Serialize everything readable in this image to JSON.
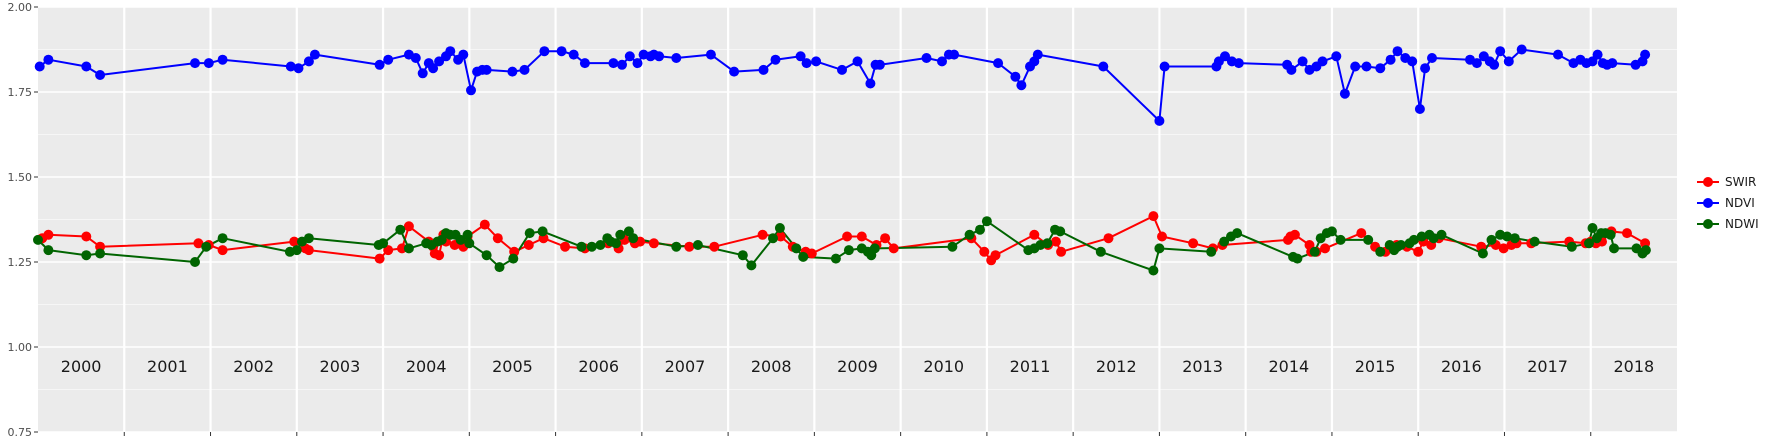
{
  "chart_data": {
    "type": "line",
    "x_kind": "decimal-year",
    "xlim": [
      2000,
      2019
    ],
    "ylim": [
      0.75,
      2.0
    ],
    "yticks": [
      0.75,
      1.0,
      1.25,
      1.5,
      1.75,
      2.0
    ],
    "ytick_labels": [
      "0.75",
      "1.00",
      "1.25",
      "1.50",
      "1.75",
      "2.00"
    ],
    "years": [
      "2000",
      "2001",
      "2002",
      "2003",
      "2004",
      "2005",
      "2006",
      "2007",
      "2008",
      "2009",
      "2010",
      "2011",
      "2012",
      "2013",
      "2014",
      "2015",
      "2016",
      "2017",
      "2018"
    ],
    "grid": true,
    "legend_position": "right",
    "colors": {
      "panel": "#ebebeb",
      "grid": "#ffffff"
    },
    "series": [
      {
        "name": "SWIR",
        "color": "#ff0000",
        "x": [
          2000.05,
          2000.12,
          2000.56,
          2000.72,
          2001.86,
          2001.98,
          2002.14,
          2002.97,
          2003.1,
          2003.14,
          2003.96,
          2004.06,
          2004.22,
          2004.3,
          2004.53,
          2004.58,
          2004.6,
          2004.65,
          2004.7,
          2004.73,
          2004.83,
          2004.88,
          2004.93,
          2004.98,
          2005.18,
          2005.33,
          2005.52,
          2005.69,
          2005.86,
          2006.11,
          2006.34,
          2006.61,
          2006.73,
          2006.8,
          2006.92,
          2006.98,
          2007.14,
          2007.55,
          2007.84,
          2008.4,
          2008.61,
          2008.75,
          2008.9,
          2008.97,
          2009.38,
          2009.55,
          2009.72,
          2009.82,
          2009.92,
          2010.82,
          2010.97,
          2011.05,
          2011.1,
          2011.55,
          2011.71,
          2011.8,
          2011.86,
          2012.41,
          2012.93,
          2013.03,
          2013.39,
          2013.62,
          2013.73,
          2014.49,
          2014.52,
          2014.57,
          2014.74,
          2014.76,
          2014.82,
          2014.92,
          2015.34,
          2015.5,
          2015.62,
          2015.75,
          2015.87,
          2016.0,
          2016.06,
          2016.15,
          2016.24,
          2016.73,
          2016.9,
          2016.99,
          2017.08,
          2017.14,
          2017.31,
          2017.75,
          2017.94,
          2018.0,
          2018.06,
          2018.13,
          2018.24,
          2018.42,
          2018.63
        ],
        "values": [
          1.32,
          1.33,
          1.325,
          1.295,
          1.305,
          1.3,
          1.285,
          1.31,
          1.29,
          1.285,
          1.26,
          1.285,
          1.29,
          1.355,
          1.31,
          1.295,
          1.275,
          1.27,
          1.33,
          1.31,
          1.3,
          1.305,
          1.295,
          1.325,
          1.36,
          1.32,
          1.28,
          1.3,
          1.32,
          1.295,
          1.29,
          1.305,
          1.29,
          1.315,
          1.305,
          1.31,
          1.305,
          1.295,
          1.295,
          1.33,
          1.325,
          1.295,
          1.28,
          1.275,
          1.325,
          1.325,
          1.3,
          1.32,
          1.29,
          1.32,
          1.28,
          1.255,
          1.27,
          1.33,
          1.3,
          1.31,
          1.28,
          1.32,
          1.385,
          1.325,
          1.305,
          1.29,
          1.3,
          1.315,
          1.325,
          1.33,
          1.3,
          1.28,
          1.28,
          1.29,
          1.335,
          1.295,
          1.28,
          1.3,
          1.295,
          1.28,
          1.31,
          1.3,
          1.32,
          1.295,
          1.3,
          1.29,
          1.3,
          1.305,
          1.305,
          1.31,
          1.305,
          1.31,
          1.305,
          1.31,
          1.34,
          1.335,
          1.305
        ]
      },
      {
        "name": "NDVI",
        "color": "#0000ff",
        "x": [
          2000.02,
          2000.12,
          2000.56,
          2000.72,
          2001.82,
          2001.98,
          2002.14,
          2002.93,
          2003.02,
          2003.14,
          2003.21,
          2003.96,
          2004.06,
          2004.3,
          2004.38,
          2004.46,
          2004.53,
          2004.58,
          2004.65,
          2004.73,
          2004.78,
          2004.87,
          2004.93,
          2005.02,
          2005.09,
          2005.15,
          2005.2,
          2005.5,
          2005.64,
          2005.87,
          2006.07,
          2006.21,
          2006.34,
          2006.67,
          2006.77,
          2006.86,
          2006.95,
          2007.02,
          2007.1,
          2007.14,
          2007.2,
          2007.4,
          2007.8,
          2008.07,
          2008.41,
          2008.55,
          2008.84,
          2008.91,
          2009.02,
          2009.32,
          2009.5,
          2009.65,
          2009.71,
          2009.76,
          2010.3,
          2010.48,
          2010.56,
          2010.62,
          2011.13,
          2011.33,
          2011.4,
          2011.5,
          2011.55,
          2011.59,
          2012.35,
          2013.0,
          2013.06,
          2013.66,
          2013.69,
          2013.76,
          2013.84,
          2013.92,
          2014.48,
          2014.53,
          2014.66,
          2014.74,
          2014.82,
          2014.89,
          2015.05,
          2015.15,
          2015.27,
          2015.4,
          2015.56,
          2015.68,
          2015.76,
          2015.85,
          2015.93,
          2016.02,
          2016.08,
          2016.16,
          2016.6,
          2016.68,
          2016.76,
          2016.83,
          2016.88,
          2016.95,
          2017.05,
          2017.2,
          2017.62,
          2017.8,
          2017.88,
          2017.95,
          2018.02,
          2018.08,
          2018.14,
          2018.19,
          2018.25,
          2018.52,
          2018.6,
          2018.63
        ],
        "values": [
          1.825,
          1.845,
          1.825,
          1.8,
          1.835,
          1.835,
          1.845,
          1.825,
          1.82,
          1.84,
          1.86,
          1.83,
          1.845,
          1.86,
          1.85,
          1.805,
          1.835,
          1.82,
          1.84,
          1.855,
          1.87,
          1.845,
          1.86,
          1.755,
          1.81,
          1.815,
          1.815,
          1.81,
          1.815,
          1.87,
          1.87,
          1.86,
          1.835,
          1.835,
          1.83,
          1.855,
          1.835,
          1.86,
          1.855,
          1.86,
          1.855,
          1.85,
          1.86,
          1.81,
          1.815,
          1.845,
          1.855,
          1.835,
          1.84,
          1.815,
          1.84,
          1.775,
          1.83,
          1.83,
          1.85,
          1.84,
          1.86,
          1.86,
          1.835,
          1.795,
          1.77,
          1.825,
          1.84,
          1.86,
          1.825,
          1.665,
          1.825,
          1.825,
          1.84,
          1.855,
          1.84,
          1.835,
          1.83,
          1.815,
          1.84,
          1.815,
          1.825,
          1.84,
          1.855,
          1.745,
          1.825,
          1.825,
          1.82,
          1.845,
          1.87,
          1.85,
          1.84,
          1.7,
          1.82,
          1.85,
          1.845,
          1.835,
          1.855,
          1.84,
          1.83,
          1.87,
          1.84,
          1.875,
          1.86,
          1.835,
          1.845,
          1.835,
          1.84,
          1.86,
          1.835,
          1.83,
          1.835,
          1.83,
          1.84,
          1.86
        ],
        "note": ""
      },
      {
        "name": "NDWI",
        "color": "#006400",
        "x": [
          2000.0,
          2000.12,
          2000.56,
          2000.72,
          2001.82,
          2001.95,
          2002.14,
          2002.92,
          2003.0,
          2003.06,
          2003.14,
          2003.95,
          2004.0,
          2004.2,
          2004.3,
          2004.5,
          2004.56,
          2004.63,
          2004.68,
          2004.73,
          2004.78,
          2004.84,
          2004.9,
          2004.98,
          2005.0,
          2005.2,
          2005.35,
          2005.51,
          2005.7,
          2005.85,
          2006.3,
          2006.42,
          2006.52,
          2006.6,
          2006.64,
          2006.7,
          2006.75,
          2006.85,
          2006.9,
          2007.4,
          2007.65,
          2008.17,
          2008.27,
          2008.52,
          2008.6,
          2008.79,
          2008.87,
          2009.25,
          2009.4,
          2009.55,
          2009.62,
          2009.66,
          2009.7,
          2010.6,
          2010.8,
          2010.92,
          2011.0,
          2011.48,
          2011.55,
          2011.62,
          2011.7,
          2011.79,
          2011.85,
          2012.32,
          2012.93,
          2013.0,
          2013.6,
          2013.75,
          2013.83,
          2013.9,
          2014.55,
          2014.6,
          2014.8,
          2014.87,
          2014.94,
          2015.0,
          2015.1,
          2015.42,
          2015.56,
          2015.67,
          2015.72,
          2015.76,
          2015.8,
          2015.9,
          2015.95,
          2016.04,
          2016.13,
          2016.18,
          2016.27,
          2016.75,
          2016.85,
          2016.95,
          2017.03,
          2017.12,
          2017.35,
          2017.78,
          2017.98,
          2018.02,
          2018.07,
          2018.12,
          2018.17,
          2018.23,
          2018.27,
          2018.53,
          2018.6,
          2018.64
        ],
        "values": [
          1.315,
          1.285,
          1.27,
          1.275,
          1.25,
          1.295,
          1.32,
          1.28,
          1.285,
          1.31,
          1.32,
          1.3,
          1.305,
          1.345,
          1.29,
          1.305,
          1.3,
          1.31,
          1.315,
          1.335,
          1.33,
          1.33,
          1.315,
          1.33,
          1.305,
          1.27,
          1.235,
          1.26,
          1.335,
          1.34,
          1.295,
          1.295,
          1.3,
          1.32,
          1.31,
          1.305,
          1.33,
          1.34,
          1.32,
          1.295,
          1.3,
          1.27,
          1.24,
          1.32,
          1.35,
          1.29,
          1.265,
          1.26,
          1.285,
          1.29,
          1.28,
          1.27,
          1.29,
          1.295,
          1.33,
          1.345,
          1.37,
          1.285,
          1.29,
          1.3,
          1.305,
          1.345,
          1.34,
          1.28,
          1.225,
          1.29,
          1.28,
          1.31,
          1.325,
          1.335,
          1.265,
          1.26,
          1.28,
          1.32,
          1.335,
          1.34,
          1.315,
          1.315,
          1.28,
          1.3,
          1.285,
          1.295,
          1.3,
          1.305,
          1.315,
          1.325,
          1.33,
          1.32,
          1.33,
          1.275,
          1.315,
          1.33,
          1.325,
          1.32,
          1.31,
          1.295,
          1.305,
          1.35,
          1.32,
          1.335,
          1.335,
          1.33,
          1.29,
          1.29,
          1.275,
          1.285
        ]
      }
    ]
  }
}
